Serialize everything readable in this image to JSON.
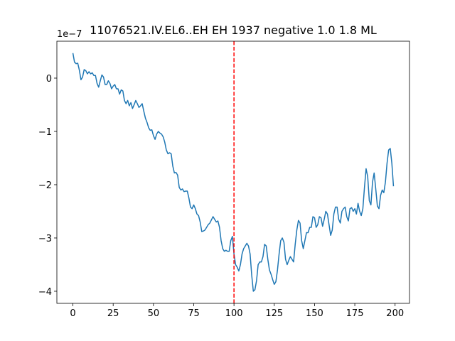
{
  "chart_data": {
    "type": "line",
    "title": "11076521.IV.EL6..EH EH 1937 negative 1.0 1.8 ML",
    "y_offset_label": "1e−7",
    "color": "#1f77b4",
    "x": [
      0,
      1,
      2,
      3,
      4,
      5,
      6,
      7,
      8,
      9,
      10,
      11,
      12,
      13,
      14,
      15,
      16,
      17,
      18,
      19,
      20,
      21,
      22,
      23,
      24,
      25,
      26,
      27,
      28,
      29,
      30,
      31,
      32,
      33,
      34,
      35,
      36,
      37,
      38,
      39,
      40,
      41,
      42,
      43,
      44,
      45,
      46,
      47,
      48,
      49,
      50,
      51,
      52,
      53,
      54,
      55,
      56,
      57,
      58,
      59,
      60,
      61,
      62,
      63,
      64,
      65,
      66,
      67,
      68,
      69,
      70,
      71,
      72,
      73,
      74,
      75,
      76,
      77,
      78,
      79,
      80,
      81,
      82,
      83,
      84,
      85,
      86,
      87,
      88,
      89,
      90,
      91,
      92,
      93,
      94,
      95,
      96,
      97,
      98,
      99,
      100,
      101,
      102,
      103,
      104,
      105,
      106,
      107,
      108,
      109,
      110,
      111,
      112,
      113,
      114,
      115,
      116,
      117,
      118,
      119,
      120,
      121,
      122,
      123,
      124,
      125,
      126,
      127,
      128,
      129,
      130,
      131,
      132,
      133,
      134,
      135,
      136,
      137,
      138,
      139,
      140,
      141,
      142,
      143,
      144,
      145,
      146,
      147,
      148,
      149,
      150,
      151,
      152,
      153,
      154,
      155,
      156,
      157,
      158,
      159,
      160,
      161,
      162,
      163,
      164,
      165,
      166,
      167,
      168,
      169,
      170,
      171,
      172,
      173,
      174,
      175,
      176,
      177,
      178,
      179,
      180,
      181,
      182,
      183,
      184,
      185,
      186,
      187,
      188,
      189,
      190,
      191,
      192,
      193,
      194,
      195,
      196,
      197,
      198,
      199
    ],
    "values": [
      0.47,
      0.3,
      0.27,
      0.28,
      0.15,
      -0.03,
      0.02,
      0.16,
      0.14,
      0.08,
      0.12,
      0.08,
      0.1,
      0.05,
      0.05,
      -0.1,
      -0.17,
      -0.05,
      0.06,
      0.02,
      -0.12,
      -0.12,
      -0.05,
      -0.1,
      -0.2,
      -0.15,
      -0.12,
      -0.2,
      -0.2,
      -0.3,
      -0.22,
      -0.24,
      -0.42,
      -0.48,
      -0.42,
      -0.52,
      -0.46,
      -0.57,
      -0.5,
      -0.42,
      -0.48,
      -0.55,
      -0.52,
      -0.48,
      -0.62,
      -0.75,
      -0.83,
      -0.93,
      -0.98,
      -0.97,
      -1.08,
      -1.15,
      -1.05,
      -1.0,
      -1.03,
      -1.05,
      -1.1,
      -1.2,
      -1.35,
      -1.42,
      -1.4,
      -1.42,
      -1.65,
      -1.78,
      -1.77,
      -1.82,
      -2.05,
      -2.1,
      -2.08,
      -2.13,
      -2.12,
      -2.12,
      -2.25,
      -2.42,
      -2.45,
      -2.38,
      -2.45,
      -2.55,
      -2.58,
      -2.7,
      -2.88,
      -2.87,
      -2.85,
      -2.8,
      -2.75,
      -2.72,
      -2.66,
      -2.6,
      -2.65,
      -2.7,
      -2.68,
      -2.8,
      -3.05,
      -3.2,
      -3.25,
      -3.23,
      -3.25,
      -3.25,
      -3.05,
      -2.97,
      -3.3,
      -3.5,
      -3.55,
      -3.62,
      -3.5,
      -3.3,
      -3.2,
      -3.15,
      -3.1,
      -3.15,
      -3.3,
      -3.7,
      -4.0,
      -3.97,
      -3.8,
      -3.5,
      -3.45,
      -3.45,
      -3.35,
      -3.12,
      -3.15,
      -3.4,
      -3.6,
      -3.68,
      -3.78,
      -3.87,
      -3.82,
      -3.6,
      -3.3,
      -3.05,
      -3.0,
      -3.08,
      -3.4,
      -3.5,
      -3.42,
      -3.35,
      -3.4,
      -3.45,
      -3.12,
      -2.85,
      -2.67,
      -2.72,
      -3.05,
      -3.2,
      -3.05,
      -2.9,
      -2.9,
      -2.8,
      -2.8,
      -2.6,
      -2.62,
      -2.8,
      -2.75,
      -2.6,
      -2.62,
      -2.78,
      -2.65,
      -2.5,
      -2.55,
      -2.75,
      -2.95,
      -2.85,
      -2.55,
      -2.42,
      -2.42,
      -2.65,
      -2.72,
      -2.5,
      -2.45,
      -2.42,
      -2.6,
      -2.68,
      -2.45,
      -2.43,
      -2.5,
      -2.45,
      -2.55,
      -2.35,
      -2.5,
      -2.58,
      -2.45,
      -2.05,
      -1.7,
      -1.85,
      -2.3,
      -2.38,
      -1.95,
      -1.78,
      -2.08,
      -2.4,
      -2.45,
      -2.2,
      -2.1,
      -2.15,
      -1.95,
      -1.6,
      -1.35,
      -1.32,
      -1.6,
      -2.03
    ],
    "xlim": [
      -9.95,
      208.95
    ],
    "ylim": [
      -4.227,
      0.693
    ],
    "xticks": [
      0,
      25,
      50,
      75,
      100,
      125,
      150,
      175,
      200
    ],
    "yticks": [
      {
        "value": -4,
        "label": "−4"
      },
      {
        "value": -3,
        "label": "−3"
      },
      {
        "value": -2,
        "label": "−2"
      },
      {
        "value": -1,
        "label": "−1"
      },
      0
    ],
    "vlines": [
      {
        "x": 100,
        "color": "#ff0000"
      }
    ]
  }
}
